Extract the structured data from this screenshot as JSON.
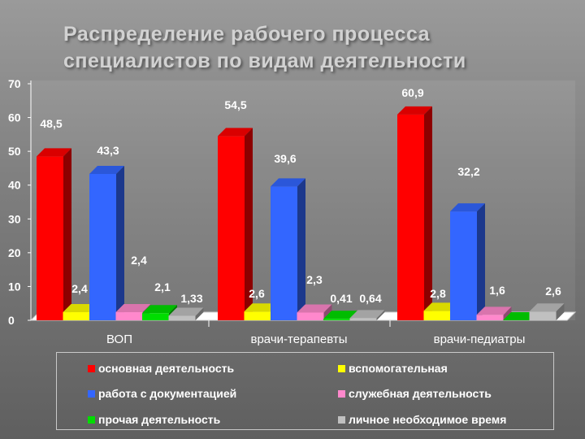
{
  "title": {
    "line1": "Распределение рабочего процесса",
    "line2": "специалистов по видам деятельности"
  },
  "chart_data": {
    "type": "bar",
    "categories": [
      "ВОП",
      "врачи-терапевты",
      "врачи-педиатры"
    ],
    "series": [
      {
        "name": "основная деятельность",
        "color": "#ff0000",
        "values": [
          48.5,
          54.5,
          60.9
        ],
        "labels": [
          "48,5",
          "54,5",
          "60,9"
        ]
      },
      {
        "name": "вспомогательная",
        "color": "#ffff00",
        "values": [
          2.4,
          2.6,
          2.8
        ],
        "labels": [
          "2,4",
          "2,6",
          "2,8"
        ]
      },
      {
        "name": "работа с документацией",
        "color": "#3366ff",
        "values": [
          43.3,
          39.6,
          32.2
        ],
        "labels": [
          "43,3",
          "39,6",
          "32,2"
        ]
      },
      {
        "name": "служебная деятельность",
        "color": "#ff88cc",
        "values": [
          2.4,
          2.3,
          1.6
        ],
        "labels": [
          "2,4",
          "2,3",
          "1,6"
        ]
      },
      {
        "name": "прочая деятельность",
        "color": "#00dd00",
        "values": [
          2.1,
          0.41,
          0
        ],
        "labels": [
          "2,1",
          "0,41",
          ""
        ]
      },
      {
        "name": "личное необходимое время",
        "color": "#c0c0c0",
        "values": [
          1.33,
          0.64,
          2.6
        ],
        "labels": [
          "1,33",
          "0,64",
          "2,6"
        ]
      }
    ],
    "ylim": [
      0,
      70
    ],
    "yticks": [
      0,
      10,
      20,
      30,
      40,
      50,
      60,
      70
    ],
    "xlabel": "",
    "ylabel": "",
    "legend_position": "bottom"
  }
}
